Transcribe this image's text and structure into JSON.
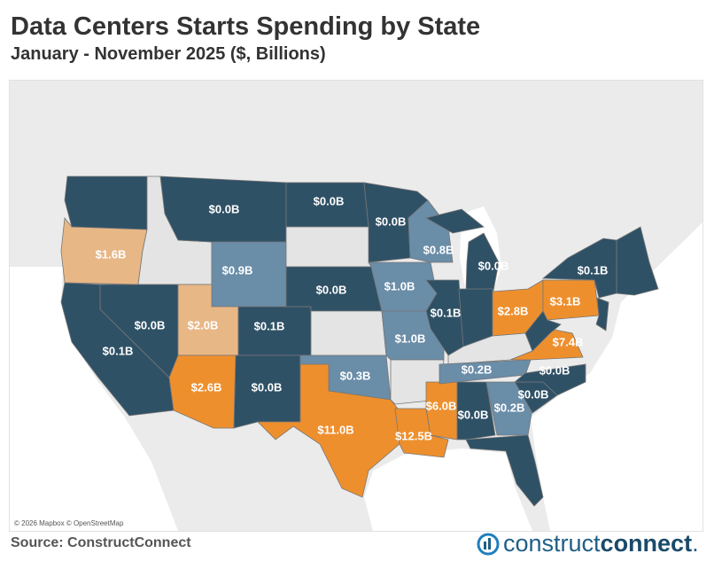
{
  "title": "Data Centers Starts Spending by State",
  "subtitle": "January - November 2025 ($, Billions)",
  "attribution": "© 2026 Mapbox © OpenStreetMap",
  "source": "Source: ConstructConnect",
  "logo": {
    "text_light": "construct",
    "text_bold": "connect",
    "dot": "."
  },
  "colors": {
    "dark": "#2f5166",
    "steel": "#6a8da8",
    "orange": "#ee8f2d",
    "light_orange": "#e8b786",
    "no_data": "#e4e4e4",
    "land": "#ebebeb",
    "water": "#ffffff"
  },
  "states": [
    {
      "state": "WA",
      "label": "",
      "tier": "dark"
    },
    {
      "state": "OR",
      "label": "$1.6B",
      "tier": "light_orange"
    },
    {
      "state": "ID",
      "label": "",
      "tier": "no_data"
    },
    {
      "state": "MT",
      "label": "$0.0B",
      "tier": "dark"
    },
    {
      "state": "WY",
      "label": "$0.9B",
      "tier": "steel"
    },
    {
      "state": "NV",
      "label": "$0.0B",
      "tier": "dark"
    },
    {
      "state": "CA",
      "label": "$0.1B",
      "tier": "dark"
    },
    {
      "state": "UT",
      "label": "$2.0B",
      "tier": "light_orange"
    },
    {
      "state": "AZ",
      "label": "$2.6B",
      "tier": "orange"
    },
    {
      "state": "CO",
      "label": "$0.1B",
      "tier": "dark"
    },
    {
      "state": "NM",
      "label": "$0.0B",
      "tier": "dark"
    },
    {
      "state": "ND",
      "label": "$0.0B",
      "tier": "dark"
    },
    {
      "state": "SD",
      "label": "",
      "tier": "no_data"
    },
    {
      "state": "NE",
      "label": "$0.0B",
      "tier": "dark"
    },
    {
      "state": "KS",
      "label": "",
      "tier": "no_data"
    },
    {
      "state": "OK",
      "label": "$0.3B",
      "tier": "steel"
    },
    {
      "state": "TX",
      "label": "$11.0B",
      "tier": "orange"
    },
    {
      "state": "MN",
      "label": "$0.0B",
      "tier": "dark"
    },
    {
      "state": "IA",
      "label": "$1.0B",
      "tier": "steel"
    },
    {
      "state": "WI",
      "label": "$0.8B",
      "tier": "steel"
    },
    {
      "state": "MO",
      "label": "$1.0B",
      "tier": "steel"
    },
    {
      "state": "AR",
      "label": "",
      "tier": "no_data"
    },
    {
      "state": "LA",
      "label": "$12.5B",
      "tier": "orange"
    },
    {
      "state": "MS",
      "label": "$6.0B",
      "tier": "orange"
    },
    {
      "state": "IL",
      "label": "$0.1B",
      "tier": "dark"
    },
    {
      "state": "MI",
      "label": "$0.0B",
      "tier": "dark"
    },
    {
      "state": "IN",
      "label": "",
      "tier": "dark"
    },
    {
      "state": "OH",
      "label": "$2.8B",
      "tier": "orange"
    },
    {
      "state": "KY",
      "label": "",
      "tier": "no_data"
    },
    {
      "state": "TN",
      "label": "$0.2B",
      "tier": "steel"
    },
    {
      "state": "AL",
      "label": "$0.0B",
      "tier": "dark"
    },
    {
      "state": "GA",
      "label": "$0.2B",
      "tier": "steel"
    },
    {
      "state": "FL",
      "label": "",
      "tier": "dark"
    },
    {
      "state": "SC",
      "label": "$0.0B",
      "tier": "dark"
    },
    {
      "state": "NC",
      "label": "$0.0B",
      "tier": "dark"
    },
    {
      "state": "VA",
      "label": "$7.4B",
      "tier": "orange"
    },
    {
      "state": "WV",
      "label": "",
      "tier": "dark"
    },
    {
      "state": "PA",
      "label": "$3.1B",
      "tier": "orange"
    },
    {
      "state": "NY",
      "label": "$0.1B",
      "tier": "dark"
    },
    {
      "state": "NJ",
      "label": "",
      "tier": "dark"
    },
    {
      "state": "NewEngland",
      "label": "",
      "tier": "dark"
    }
  ]
}
